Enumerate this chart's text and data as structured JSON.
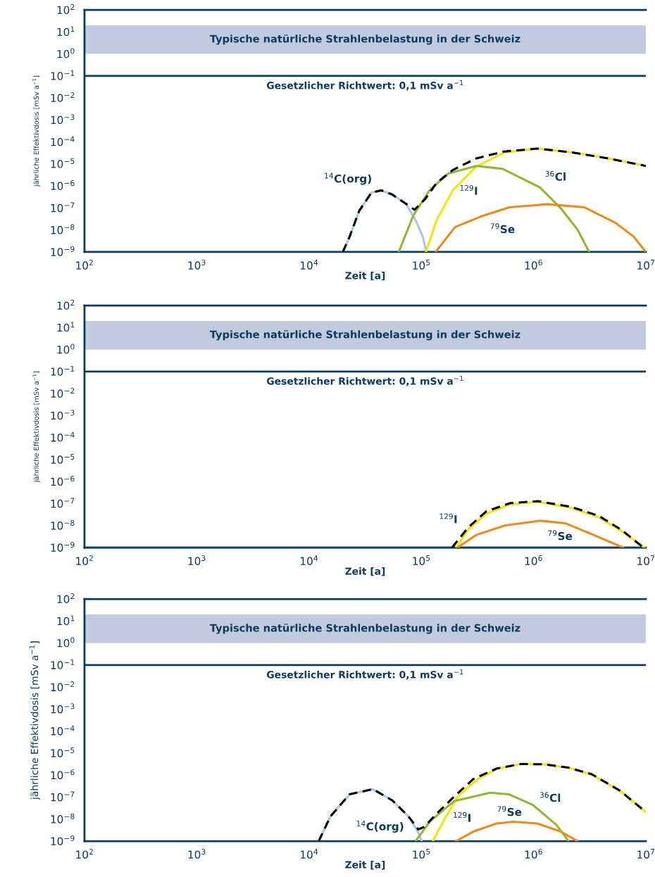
{
  "chart_data": [
    {
      "type": "line",
      "xlabel": "Zeit [a]",
      "ylabel": "jährliche Effektivdosis [mSv a$^{−1}$]",
      "log": "xy",
      "grid": false,
      "legend": false,
      "marker": "none",
      "xlim": [
        100,
        10000000
      ],
      "xticks": [
        {
          "value": 100,
          "label": "10$^{2}$"
        },
        {
          "value": 1000,
          "label": "10$^{3}$"
        },
        {
          "value": 10000,
          "label": "10$^{4}$"
        },
        {
          "value": 100000,
          "label": "10$^{5}$"
        },
        {
          "value": 1000000,
          "label": "10$^{6}$"
        },
        {
          "value": 10000000,
          "label": "10$^{7}$"
        }
      ],
      "ylim": [
        1e-09,
        100
      ],
      "yticks": [
        {
          "value": 1e-09,
          "label": "10$^{−9}$"
        },
        {
          "value": 1e-08,
          "label": "10$^{−8}$"
        },
        {
          "value": 1e-07,
          "label": "10$^{−7}$"
        },
        {
          "value": 1e-06,
          "label": "10$^{−6}$"
        },
        {
          "value": 1e-05,
          "label": "10$^{−5}$"
        },
        {
          "value": 0.0001,
          "label": "10$^{−4}$"
        },
        {
          "value": 0.001,
          "label": "10$^{−3}$"
        },
        {
          "value": 0.01,
          "label": "10$^{−2}$"
        },
        {
          "value": 0.1,
          "label": "10$^{−1}$"
        },
        {
          "value": 1,
          "label": "10$^{0}$"
        },
        {
          "value": 10,
          "label": "10$^{1}$"
        },
        {
          "value": 100,
          "label": "10$^{2}$"
        }
      ],
      "bands": [
        {
          "axis": "y",
          "from": 1,
          "to": 20,
          "label": "Typische natürliche Strahlenbelastung in der Schweiz",
          "color": "#c2cbdd"
        }
      ],
      "ref_lines": [
        {
          "axis": "y",
          "value": 0.1,
          "label": "Gesetzlicher Richtwert: 0,1 mSv a$^{−1}$",
          "color": "#0b3a63",
          "line_style": "solid"
        }
      ],
      "series": [
        {
          "name": "$^{14}$C(org)",
          "color": "#a6c8e8",
          "line_style": "solid",
          "x": [
            20000.0,
            23000.0,
            28000.0,
            36000.0,
            44000.0,
            55000.0,
            73000.0,
            89000.0,
            103000.0,
            111000.0
          ],
          "values": [
            1e-09,
            5e-09,
            7.4e-08,
            5e-07,
            6.3e-07,
            4.1e-07,
            1.55e-07,
            2.8e-08,
            5e-09,
            1e-09
          ]
        },
        {
          "name": "$^{129}$I",
          "color": "#f2e600",
          "line_style": "solid",
          "x": [
            110000.0,
            137000.0,
            192000.0,
            310000.0,
            550000.0,
            1090000.0,
            2230000.0,
            4600000.0,
            10000000.0
          ],
          "values": [
            1e-09,
            2.8e-08,
            6.6e-07,
            7.8e-06,
            3.3e-05,
            5e-05,
            3.3e-05,
            1.8e-05,
            8.1e-06
          ]
        },
        {
          "name": "$^{36}$Cl",
          "color": "#8db92e",
          "line_style": "solid",
          "x": [
            63000.0,
            85000.0,
            119000.0,
            174000.0,
            310000.0,
            530000.0,
            1140000.0,
            1760000.0,
            2460000.0,
            3130000.0
          ],
          "values": [
            1e-09,
            4.6e-08,
            6.6e-07,
            3.7e-06,
            8.1e-06,
            6e-06,
            8.5e-07,
            9.3e-08,
            1.05e-08,
            1e-09
          ]
        },
        {
          "name": "$^{79}$Se",
          "color": "#ee8a1a",
          "line_style": "solid",
          "x": [
            134000.0,
            200000.0,
            340000.0,
            610000.0,
            1320000.0,
            2840000.0,
            5300000.0,
            7800000.0,
            10000000.0
          ],
          "values": [
            1e-09,
            1.35e-08,
            4.1e-08,
            1.07e-07,
            1.48e-07,
            1.07e-07,
            2.2e-08,
            5e-09,
            1e-09
          ]
        },
        {
          "color": "#000000",
          "line_style": "dashed",
          "x": [
            20000.0,
            23000.0,
            28000.0,
            36000.0,
            44000.0,
            55000.0,
            73000.0,
            87000.0,
            108000.0,
            137000.0,
            192000.0,
            310000.0,
            550000.0,
            1090000.0,
            2230000.0,
            4600000.0,
            10000000.0
          ],
          "values": [
            1e-09,
            5e-09,
            7.4e-08,
            5e-07,
            6.3e-07,
            4.1e-07,
            1.55e-07,
            8.3e-08,
            2.5e-07,
            1.38e-06,
            5.4e-06,
            1.8e-05,
            3.7e-05,
            5e-05,
            3.3e-05,
            1.8e-05,
            8.1e-06
          ]
        }
      ]
    },
    {
      "type": "line",
      "xlabel": "Zeit [a]",
      "ylabel": "jährliche Effektivdosis [mSv a$^{−1}$]",
      "log": "xy",
      "grid": false,
      "legend": false,
      "marker": "none",
      "xlim": [
        100,
        10000000
      ],
      "xticks": [
        {
          "value": 100,
          "label": "10$^{2}$"
        },
        {
          "value": 1000,
          "label": "10$^{3}$"
        },
        {
          "value": 10000,
          "label": "10$^{4}$"
        },
        {
          "value": 100000,
          "label": "10$^{5}$"
        },
        {
          "value": 1000000,
          "label": "10$^{6}$"
        },
        {
          "value": 10000000,
          "label": "10$^{7}$"
        }
      ],
      "ylim": [
        1e-09,
        100
      ],
      "yticks": [
        {
          "value": 1e-09,
          "label": "10$^{−9}$"
        },
        {
          "value": 1e-08,
          "label": "10$^{−8}$"
        },
        {
          "value": 1e-07,
          "label": "10$^{−7}$"
        },
        {
          "value": 1e-06,
          "label": "10$^{−6}$"
        },
        {
          "value": 1e-05,
          "label": "10$^{−5}$"
        },
        {
          "value": 0.0001,
          "label": "10$^{−4}$"
        },
        {
          "value": 0.001,
          "label": "10$^{−3}$"
        },
        {
          "value": 0.01,
          "label": "10$^{−2}$"
        },
        {
          "value": 0.1,
          "label": "10$^{−1}$"
        },
        {
          "value": 1,
          "label": "10$^{0}$"
        },
        {
          "value": 10,
          "label": "10$^{1}$"
        },
        {
          "value": 100,
          "label": "10$^{2}$"
        }
      ],
      "bands": [
        {
          "axis": "y",
          "from": 1,
          "to": 20,
          "label": "Typische natürliche Strahlenbelastung in der Schweiz",
          "color": "#c2cbdd"
        }
      ],
      "ref_lines": [
        {
          "axis": "y",
          "value": 0.1,
          "label": "Gesetzlicher Richtwert: 0,1 mSv a$^{−1}$",
          "color": "#0b3a63",
          "line_style": "solid"
        }
      ],
      "series": [
        {
          "name": "$^{129}$I",
          "color": "#f2e600",
          "line_style": "solid",
          "x": [
            205000.0,
            260000.0,
            380000.0,
            620000.0,
            1090000.0,
            2130000.0,
            3800000.0,
            6100000.0,
            9800000.0
          ],
          "values": [
            1e-09,
            6.3e-09,
            3.5e-08,
            9.3e-08,
            1.2e-07,
            6.5e-08,
            2.4e-08,
            5.5e-09,
            1e-09
          ]
        },
        {
          "name": "$^{79}$Se",
          "color": "#ee8a1a",
          "line_style": "solid",
          "x": [
            210000.0,
            310000.0,
            560000.0,
            1150000.0,
            1940000.0,
            3400000.0,
            6300000.0
          ],
          "values": [
            1e-09,
            3.8e-09,
            1.02e-08,
            1.66e-08,
            1.26e-08,
            3.8e-09,
            1e-09
          ]
        },
        {
          "color": "#000000",
          "line_style": "dashed",
          "x": [
            188000.0,
            260000.0,
            380000.0,
            620000.0,
            1090000.0,
            2130000.0,
            3800000.0,
            6100000.0,
            9500000.0
          ],
          "values": [
            1e-09,
            7.9e-09,
            4.5e-08,
            1.05e-07,
            1.29e-07,
            7.2e-08,
            2.8e-08,
            6.3e-09,
            1e-09
          ]
        }
      ]
    },
    {
      "type": "line",
      "xlabel": "Zeit [a]",
      "ylabel": "jährliche Effektivdosis [mSv a$^{−1}$]",
      "log": "xy",
      "grid": false,
      "legend": false,
      "marker": "none",
      "xlim": [
        100,
        10000000
      ],
      "xticks": [
        {
          "value": 100,
          "label": "10$^{2}$"
        },
        {
          "value": 1000,
          "label": "10$^{3}$"
        },
        {
          "value": 10000,
          "label": "10$^{4}$"
        },
        {
          "value": 100000,
          "label": "10$^{5}$"
        },
        {
          "value": 1000000,
          "label": "10$^{6}$"
        },
        {
          "value": 10000000,
          "label": "10$^{7}$"
        }
      ],
      "ylim": [
        1e-09,
        100
      ],
      "yticks": [
        {
          "value": 1e-09,
          "label": "10$^{−9}$"
        },
        {
          "value": 1e-08,
          "label": "10$^{−8}$"
        },
        {
          "value": 1e-07,
          "label": "10$^{−7}$"
        },
        {
          "value": 1e-06,
          "label": "10$^{−6}$"
        },
        {
          "value": 1e-05,
          "label": "10$^{−5}$"
        },
        {
          "value": 0.0001,
          "label": "10$^{−4}$"
        },
        {
          "value": 0.001,
          "label": "10$^{−3}$"
        },
        {
          "value": 0.01,
          "label": "10$^{−2}$"
        },
        {
          "value": 0.1,
          "label": "10$^{−1}$"
        },
        {
          "value": 1,
          "label": "10$^{0}$"
        },
        {
          "value": 10,
          "label": "10$^{1}$"
        },
        {
          "value": 100,
          "label": "10$^{2}$"
        }
      ],
      "bands": [
        {
          "axis": "y",
          "from": 1,
          "to": 20,
          "label": "Typische natürliche Strahlenbelastung in der Schweiz",
          "color": "#c2cbdd"
        }
      ],
      "ref_lines": [
        {
          "axis": "y",
          "value": 0.1,
          "label": "Gesetzlicher Richtwert: 0,1 mSv a$^{−1}$",
          "color": "#0b3a63",
          "line_style": "solid"
        }
      ],
      "series": [
        {
          "name": "$^{14}$C(org)",
          "color": "#a6c8e8",
          "line_style": "solid",
          "x": [
            12200.0,
            15500.0,
            23000.0,
            37000.0,
            55000.0,
            77000.0,
            92000.0,
            101000.0
          ],
          "values": [
            1e-09,
            1.32e-08,
            1.35e-07,
            2.3e-07,
            7.2e-08,
            1.32e-08,
            3e-09,
            1e-09
          ]
        },
        {
          "name": "$^{129}$I",
          "color": "#f2e600",
          "line_style": "solid",
          "x": [
            127000.0,
            161000.0,
            216000.0,
            320000.0,
            470000.0,
            770000.0,
            1250000.0,
            2030000.0,
            3300000.0,
            5900000.0,
            10000000.0
          ],
          "values": [
            1e-09,
            1.02e-08,
            1.2e-07,
            6.6e-07,
            1.9e-06,
            3.2e-06,
            3e-06,
            2.2e-06,
            1.07e-06,
            1.9e-07,
            2.1e-08
          ]
        },
        {
          "name": "$^{36}$Cl",
          "color": "#8db92e",
          "line_style": "solid",
          "x": [
            89000.0,
            120000.0,
            196000.0,
            410000.0,
            600000.0,
            980000.0,
            1590000.0,
            2050000.0
          ],
          "values": [
            1e-09,
            8.1e-09,
            6.5e-08,
            1.58e-07,
            1.35e-07,
            4.5e-08,
            5.6e-09,
            1e-09
          ]
        },
        {
          "name": "$^{79}$Se",
          "color": "#ee8a1a",
          "line_style": "solid",
          "x": [
            204000.0,
            290000.0,
            470000.0,
            660000.0,
            1080000.0,
            1750000.0,
            2470000.0
          ],
          "values": [
            1e-09,
            2.7e-09,
            6.3e-09,
            7.6e-09,
            6.3e-09,
            2.7e-09,
            1e-09
          ]
        },
        {
          "color": "#000000",
          "line_style": "dashed",
          "x": [
            12200.0,
            15500.0,
            23000.0,
            37000.0,
            55000.0,
            77000.0,
            94000.0,
            106000.0,
            139000.0,
            196000.0,
            290000.0,
            470000.0,
            770000.0,
            1250000.0,
            2030000.0,
            3300000.0,
            5900000.0,
            10000000.0
          ],
          "values": [
            1e-09,
            1.32e-08,
            1.35e-07,
            2.3e-07,
            7.2e-08,
            1.32e-08,
            3.4e-09,
            4.4e-09,
            1.9e-08,
            1.05e-07,
            6.6e-07,
            2e-06,
            3.2e-06,
            3.1e-06,
            2.2e-06,
            1.1e-06,
            1.95e-07,
            2.1e-08
          ]
        }
      ]
    }
  ]
}
